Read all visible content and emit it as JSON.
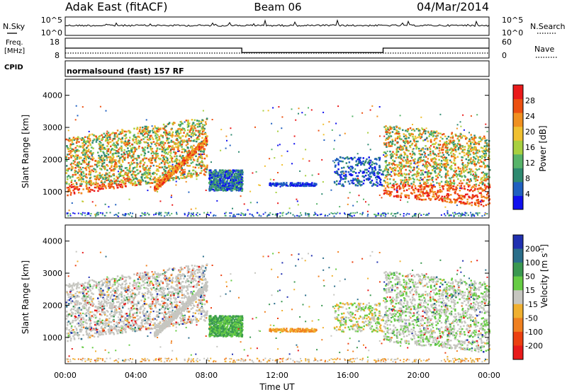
{
  "header": {
    "station": "Adak East (fitACF)",
    "beam": "Beam 06",
    "date": "04/Mar/2014"
  },
  "noise_panel": {
    "left_label": "N.Sky",
    "right_label": "N.Search",
    "left_ticks": [
      "10^5",
      "10^0"
    ],
    "right_ticks": [
      "10^5",
      "10^0"
    ]
  },
  "freq_panel": {
    "left_label_1": "Freq.",
    "left_label_2": "[MHz]",
    "cpid_label": "CPID",
    "right_label": "Nave",
    "left_ticks": [
      "18",
      "8"
    ],
    "right_ticks": [
      "60",
      "0"
    ],
    "freq_steps": [
      {
        "t0": 0,
        "t1": 10,
        "value": 13
      },
      {
        "t0": 10,
        "t1": 18,
        "value": 10.4
      },
      {
        "t0": 18,
        "t1": 24,
        "value": 13
      }
    ],
    "nave_level": 15
  },
  "cpid_text": "normalsound (fast) 157 RF",
  "x_axis": {
    "label": "Time UT",
    "ticks": [
      "00:00",
      "04:00",
      "08:00",
      "12:00",
      "16:00",
      "20:00",
      "00:00"
    ],
    "range_hours": [
      0,
      24
    ]
  },
  "chart_data": [
    {
      "type": "heatmap",
      "title": "",
      "xlabel": "",
      "ylabel": "Slant Range [km]",
      "yticks": [
        "1000",
        "2000",
        "3000",
        "4000"
      ],
      "ylim": [
        180,
        4500
      ],
      "colorbar": {
        "label": "Power [dB]",
        "ticks": [
          "4",
          "8",
          "12",
          "16",
          "20",
          "24",
          "28"
        ],
        "colors": [
          "#1010ee",
          "#2060c0",
          "#2e8a70",
          "#58b46a",
          "#a8d040",
          "#f0c030",
          "#f09020",
          "#ec5010",
          "#ea1a1a"
        ]
      }
    },
    {
      "type": "heatmap",
      "title": "",
      "xlabel": "Time UT",
      "ylabel": "Slant Range [km]",
      "yticks": [
        "1000",
        "2000",
        "3000",
        "4000"
      ],
      "ylim": [
        180,
        4500
      ],
      "colorbar": {
        "label": "Velocity [m s",
        "label_sup": "-1",
        "label_end": "]",
        "ticks": [
          "200",
          "100",
          "50",
          "15",
          "-15",
          "-50",
          "-100",
          "-200"
        ],
        "colors": [
          "#2030b0",
          "#2a6e8a",
          "#3a9850",
          "#66cc44",
          "#c6c6c0",
          "#f0b030",
          "#f08020",
          "#ec4010",
          "#e81a1a"
        ]
      }
    }
  ]
}
